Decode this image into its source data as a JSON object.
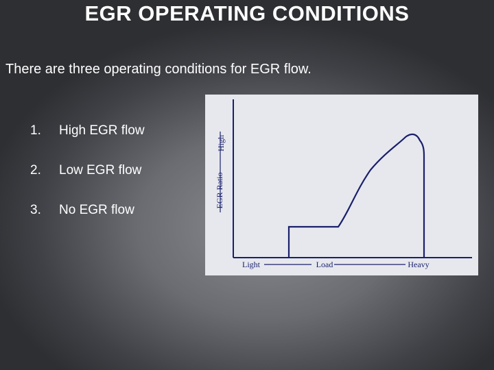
{
  "header": {
    "title": "EGR OPERATING CONDITIONS"
  },
  "intro": "There are three operating conditions for EGR flow.",
  "list": [
    {
      "number": "1.",
      "text": "High EGR flow"
    },
    {
      "number": "2.",
      "text": "Low EGR flow"
    },
    {
      "number": "3.",
      "text": "No EGR flow"
    }
  ],
  "figure": {
    "y_axis_label": "EGR Ratio",
    "y_axis_high": "High",
    "x_axis_labels": [
      "Light",
      "Load",
      "Heavy"
    ]
  }
}
